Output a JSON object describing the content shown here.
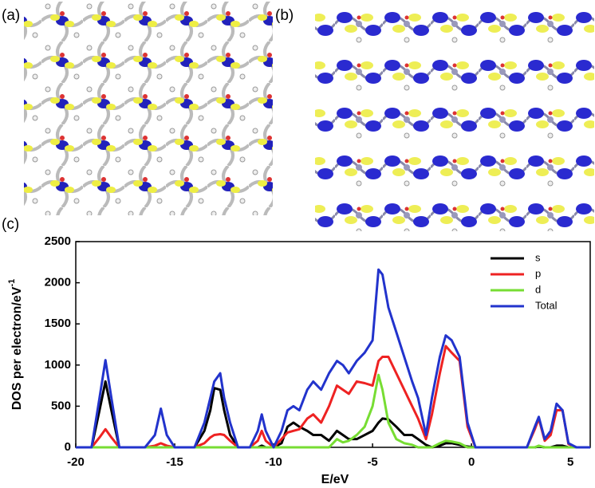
{
  "panel_labels": [
    "(a)",
    "(b)",
    "(c)"
  ],
  "chart_data": {
    "type": "line",
    "x_label": "E/eV",
    "y_label": "DOS per electron/eV",
    "y_label_sup": "-1",
    "x": [
      -20,
      -19.2,
      -18.8,
      -18.5,
      -18.2,
      -17.8,
      -16.5,
      -16,
      -15.7,
      -15.4,
      -15,
      -14,
      -13.5,
      -13.2,
      -13,
      -12.7,
      -12.5,
      -12.2,
      -11.8,
      -11.2,
      -10.8,
      -10.6,
      -10.4,
      -10,
      -9.6,
      -9.3,
      -9,
      -8.7,
      -8.3,
      -8,
      -7.6,
      -7.2,
      -6.8,
      -6.5,
      -6.2,
      -5.8,
      -5.4,
      -5,
      -4.7,
      -4.5,
      -4.2,
      -3.8,
      -3.4,
      -3,
      -2.7,
      -2.3,
      -2,
      -1.6,
      -1.3,
      -1,
      -0.6,
      -0.2,
      0.2,
      1,
      2.8,
      3.2,
      3.4,
      3.7,
      4,
      4.3,
      4.6,
      4.9,
      5.3,
      6
    ],
    "series": [
      {
        "name": "s",
        "color": "#000000",
        "values": [
          0,
          0,
          450,
          800,
          450,
          0,
          0,
          0,
          0,
          0,
          0,
          0,
          200,
          450,
          720,
          700,
          450,
          150,
          0,
          0,
          0,
          20,
          0,
          0,
          50,
          250,
          300,
          250,
          200,
          150,
          150,
          80,
          200,
          150,
          100,
          100,
          150,
          200,
          300,
          350,
          340,
          250,
          150,
          150,
          100,
          30,
          0,
          20,
          50,
          50,
          30,
          10,
          0,
          0,
          0,
          0,
          10,
          0,
          0,
          20,
          20,
          0,
          0,
          0
        ]
      },
      {
        "name": "p",
        "color": "#ee2222",
        "values": [
          0,
          0,
          120,
          220,
          120,
          0,
          0,
          20,
          50,
          20,
          0,
          0,
          50,
          120,
          150,
          160,
          150,
          80,
          0,
          0,
          80,
          200,
          80,
          0,
          100,
          180,
          200,
          220,
          350,
          400,
          300,
          500,
          750,
          700,
          650,
          800,
          780,
          750,
          1050,
          1100,
          1100,
          900,
          700,
          500,
          350,
          100,
          400,
          900,
          1230,
          1150,
          1050,
          250,
          0,
          0,
          0,
          220,
          350,
          80,
          150,
          450,
          450,
          40,
          0,
          0
        ]
      },
      {
        "name": "d",
        "color": "#77dd33",
        "values": [
          0,
          0,
          0,
          0,
          0,
          0,
          0,
          0,
          0,
          0,
          0,
          0,
          0,
          0,
          0,
          0,
          0,
          0,
          0,
          0,
          0,
          0,
          0,
          0,
          0,
          0,
          0,
          0,
          0,
          0,
          0,
          0,
          100,
          60,
          80,
          150,
          250,
          500,
          880,
          700,
          300,
          100,
          50,
          30,
          0,
          0,
          0,
          50,
          80,
          70,
          50,
          0,
          0,
          0,
          0,
          0,
          20,
          0,
          0,
          0,
          0,
          0,
          0,
          0
        ]
      },
      {
        "name": "Total",
        "color": "#2233cc",
        "values": [
          0,
          0,
          600,
          1060,
          600,
          0,
          0,
          150,
          470,
          150,
          0,
          0,
          300,
          600,
          800,
          900,
          600,
          300,
          0,
          0,
          200,
          400,
          200,
          0,
          200,
          450,
          500,
          450,
          700,
          800,
          700,
          900,
          1050,
          1000,
          900,
          1050,
          1150,
          1300,
          2160,
          2100,
          1700,
          1400,
          1100,
          800,
          600,
          150,
          600,
          1100,
          1360,
          1300,
          1100,
          300,
          0,
          0,
          0,
          250,
          370,
          100,
          200,
          530,
          450,
          50,
          0,
          0
        ]
      }
    ],
    "xlim": [
      -20,
      6
    ],
    "xticks": [
      -20,
      -15,
      -10,
      -5,
      0,
      5
    ],
    "ylim": [
      0,
      2500
    ],
    "yticks": [
      0,
      500,
      1000,
      1500,
      2000,
      2500
    ],
    "legend": "top-right"
  }
}
